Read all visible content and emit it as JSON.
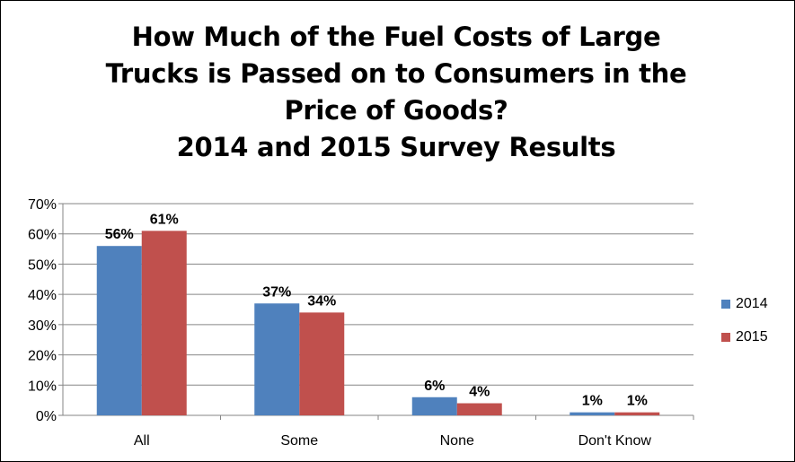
{
  "chart_data": {
    "type": "bar",
    "title_lines": [
      "How Much of the Fuel Costs of Large",
      "Trucks is Passed on to Consumers in the",
      "Price of Goods?",
      "2014 and 2015 Survey Results"
    ],
    "categories": [
      "All",
      "Some",
      "None",
      "Don't Know"
    ],
    "series": [
      {
        "name": "2014",
        "values": [
          56,
          37,
          6,
          1
        ],
        "labels": [
          "56%",
          "37%",
          "6%",
          "1%"
        ],
        "color": "#4F81BD"
      },
      {
        "name": "2015",
        "values": [
          61,
          34,
          4,
          1
        ],
        "labels": [
          "61%",
          "34%",
          "4%",
          "1%"
        ],
        "color": "#C0504D"
      }
    ],
    "y_ticks": [
      "0%",
      "10%",
      "20%",
      "30%",
      "40%",
      "50%",
      "60%",
      "70%"
    ],
    "ylim": [
      0,
      70
    ],
    "grid": true,
    "legend_position": "right"
  }
}
